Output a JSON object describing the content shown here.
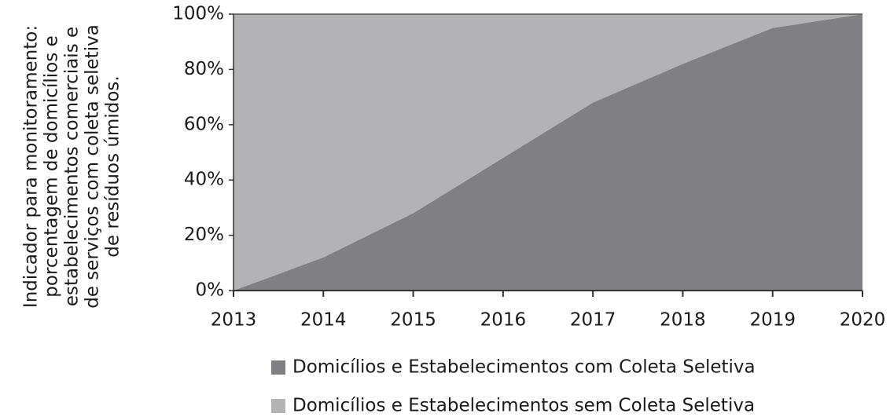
{
  "chart_data": {
    "type": "stacked_area",
    "ylabel": [
      "Indicador para monitoramento:",
      "porcentagem de domicílios e",
      "estabelecimentos comerciais e",
      "de serviços com coleta seletiva",
      "de resíduos úmidos."
    ],
    "x": [
      2013,
      2014,
      2015,
      2016,
      2017,
      2018,
      2019,
      2020
    ],
    "xlim": [
      2013,
      2020
    ],
    "xticks": [
      2013,
      2014,
      2015,
      2016,
      2017,
      2018,
      2019,
      2020
    ],
    "ylim": [
      0,
      100
    ],
    "yticks": [
      {
        "value": 0,
        "label": "0%"
      },
      {
        "value": 20,
        "label": "20%"
      },
      {
        "value": 40,
        "label": "40%"
      },
      {
        "value": 60,
        "label": "60%"
      },
      {
        "value": 80,
        "label": "80%"
      },
      {
        "value": 100,
        "label": "100%"
      }
    ],
    "series": [
      {
        "name": "Domicílios e Estabelecimentos com Coleta Seletiva",
        "color": "#808084",
        "values": [
          0,
          12,
          28,
          48,
          68,
          82,
          95,
          100
        ]
      },
      {
        "name": "Domicílios e Estabelecimentos sem Coleta Seletiva",
        "color": "#b3b3b5",
        "values": [
          100,
          88,
          72,
          52,
          32,
          18,
          5,
          0
        ]
      }
    ]
  }
}
